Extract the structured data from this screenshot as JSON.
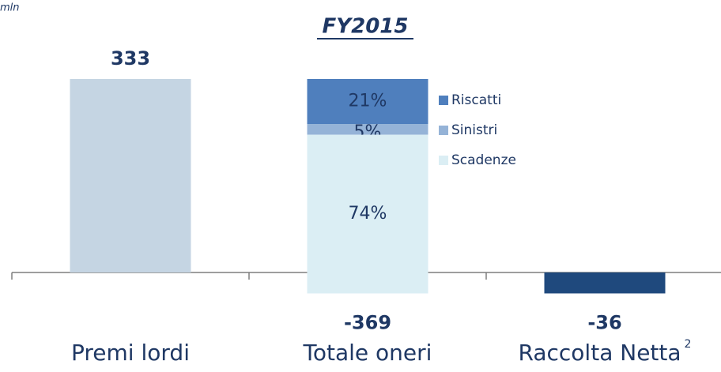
{
  "chart_data": {
    "type": "waterfall",
    "title": "FY2015",
    "unit_note": "mln",
    "categories": [
      "Premi lordi",
      "Totale oneri",
      "Raccolta Netta"
    ],
    "category_footnotes": [
      null,
      null,
      "2"
    ],
    "values": [
      333,
      -369,
      -36
    ],
    "colors": [
      "#c5d5e3",
      null,
      "#1f497d"
    ],
    "breakdown": {
      "category_index": 1,
      "series": [
        {
          "name": "Riscatti",
          "color": "#4f7fbd",
          "values": [
            21
          ],
          "value_labels": [
            "21%"
          ]
        },
        {
          "name": "Sinistri",
          "color": "#95b3d7",
          "values": [
            5
          ],
          "value_labels": [
            "5%"
          ]
        },
        {
          "name": "Scadenze",
          "color": "#dbeef4",
          "values": [
            74
          ],
          "value_labels": [
            "74%"
          ]
        }
      ]
    },
    "legend": "right-of-stack"
  }
}
